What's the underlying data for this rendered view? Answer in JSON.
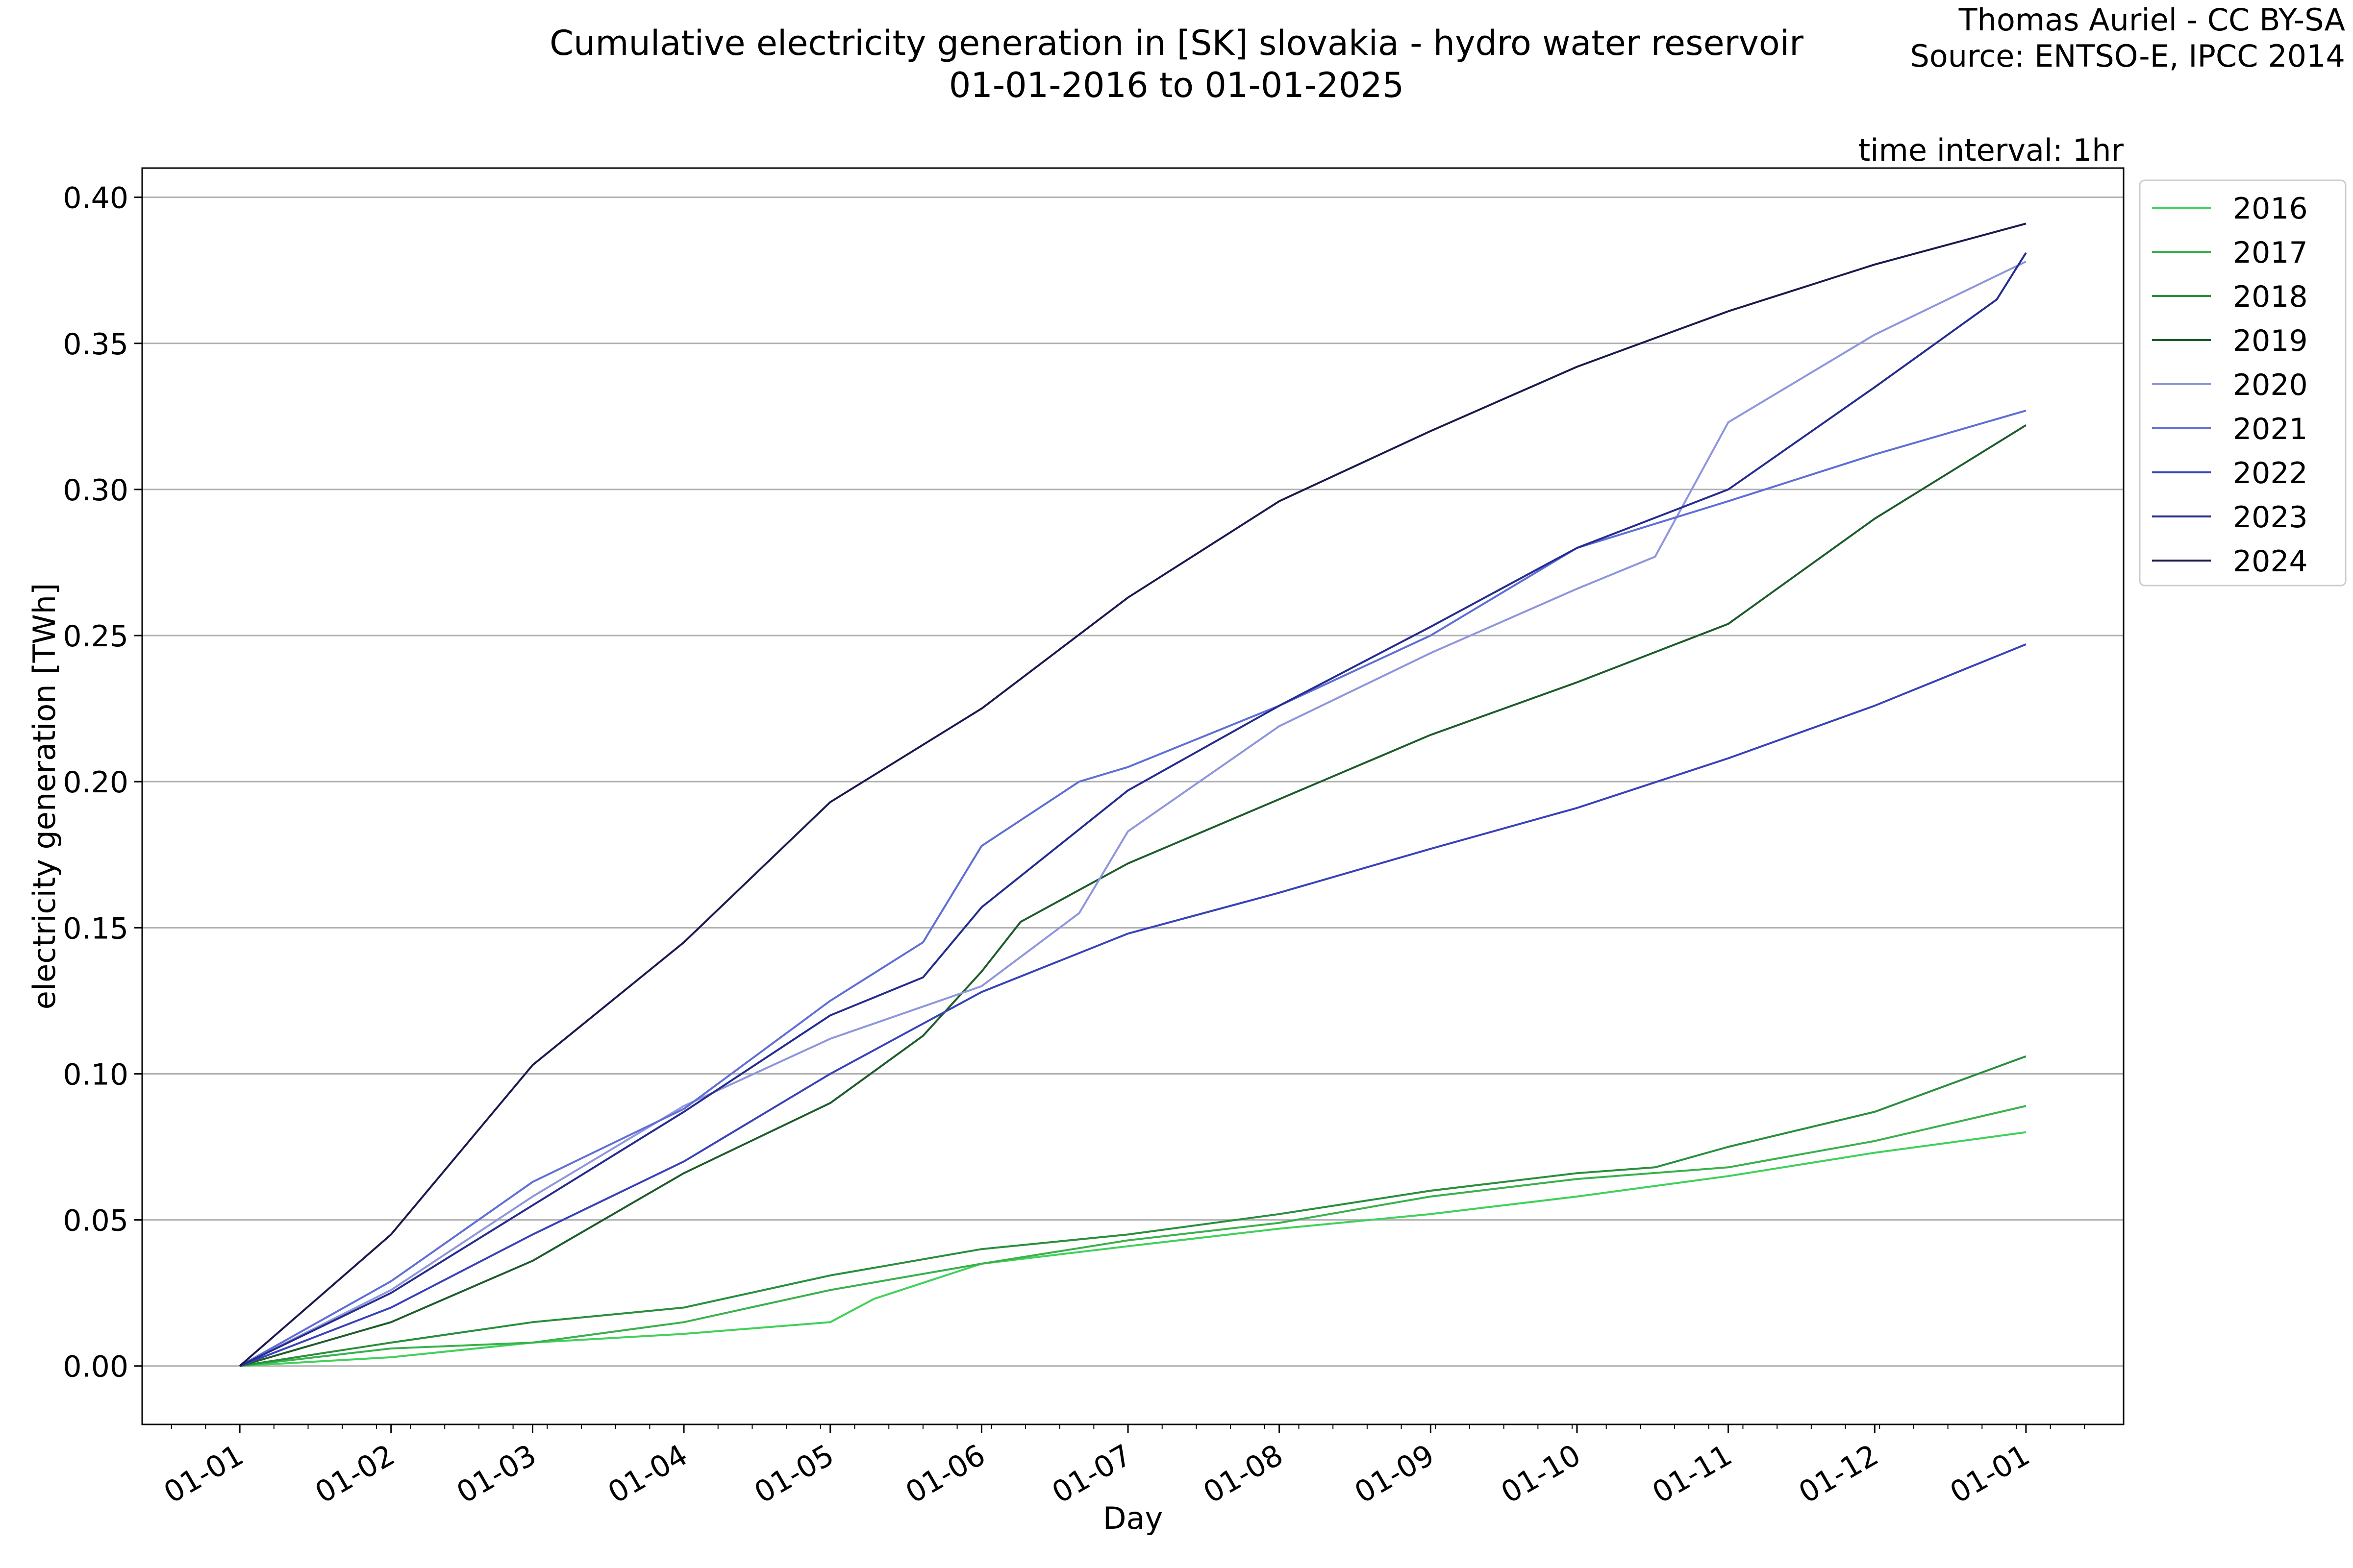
{
  "chart_data": {
    "type": "line",
    "title": "Cumulative electricity generation in [SK] slovakia - hydro water reservoir",
    "subtitle": "01-01-2016 to 01-01-2025",
    "credit": "Thomas Auriel - CC BY-SA",
    "source": "Source: ENTSO-E, IPCC 2014",
    "annotation": "time interval: 1hr",
    "xlabel": "Day",
    "ylabel": "electricity generation [TWh]",
    "x_unit": "day of year",
    "xlim": [
      -20,
      386
    ],
    "ylim": [
      -0.02,
      0.41
    ],
    "x_ticks": [
      {
        "day": 0,
        "label": "01-01"
      },
      {
        "day": 31,
        "label": "01-02"
      },
      {
        "day": 60,
        "label": "01-03"
      },
      {
        "day": 91,
        "label": "01-04"
      },
      {
        "day": 121,
        "label": "01-05"
      },
      {
        "day": 152,
        "label": "01-06"
      },
      {
        "day": 182,
        "label": "01-07"
      },
      {
        "day": 213,
        "label": "01-08"
      },
      {
        "day": 244,
        "label": "01-09"
      },
      {
        "day": 274,
        "label": "01-10"
      },
      {
        "day": 305,
        "label": "01-11"
      },
      {
        "day": 335,
        "label": "01-12"
      },
      {
        "day": 366,
        "label": "01-01"
      }
    ],
    "y_ticks": [
      {
        "value": 0.0,
        "label": "0.00"
      },
      {
        "value": 0.05,
        "label": "0.05"
      },
      {
        "value": 0.1,
        "label": "0.10"
      },
      {
        "value": 0.15,
        "label": "0.15"
      },
      {
        "value": 0.2,
        "label": "0.20"
      },
      {
        "value": 0.25,
        "label": "0.25"
      },
      {
        "value": 0.3,
        "label": "0.30"
      },
      {
        "value": 0.35,
        "label": "0.35"
      },
      {
        "value": 0.4,
        "label": "0.40"
      }
    ],
    "grid": "horizontal",
    "legend_position": "outside right, top",
    "series": [
      {
        "name": "2016",
        "color": "#41d15a",
        "points": [
          [
            0,
            0
          ],
          [
            31,
            0.003
          ],
          [
            60,
            0.008
          ],
          [
            91,
            0.011
          ],
          [
            121,
            0.015
          ],
          [
            130,
            0.023
          ],
          [
            152,
            0.035
          ],
          [
            182,
            0.041
          ],
          [
            213,
            0.047
          ],
          [
            244,
            0.052
          ],
          [
            274,
            0.058
          ],
          [
            305,
            0.065
          ],
          [
            335,
            0.073
          ],
          [
            366,
            0.08
          ]
        ]
      },
      {
        "name": "2017",
        "color": "#3ab14d",
        "points": [
          [
            0,
            0
          ],
          [
            31,
            0.006
          ],
          [
            60,
            0.008
          ],
          [
            91,
            0.015
          ],
          [
            121,
            0.026
          ],
          [
            152,
            0.035
          ],
          [
            182,
            0.043
          ],
          [
            213,
            0.049
          ],
          [
            244,
            0.058
          ],
          [
            274,
            0.064
          ],
          [
            305,
            0.068
          ],
          [
            335,
            0.077
          ],
          [
            366,
            0.089
          ]
        ]
      },
      {
        "name": "2018",
        "color": "#2a8f3d",
        "points": [
          [
            0,
            0
          ],
          [
            31,
            0.008
          ],
          [
            60,
            0.015
          ],
          [
            91,
            0.02
          ],
          [
            121,
            0.031
          ],
          [
            152,
            0.04
          ],
          [
            182,
            0.045
          ],
          [
            213,
            0.052
          ],
          [
            244,
            0.06
          ],
          [
            274,
            0.066
          ],
          [
            290,
            0.068
          ],
          [
            305,
            0.075
          ],
          [
            335,
            0.087
          ],
          [
            366,
            0.106
          ]
        ]
      },
      {
        "name": "2019",
        "color": "#1e5c2c",
        "points": [
          [
            0,
            0
          ],
          [
            31,
            0.015
          ],
          [
            60,
            0.036
          ],
          [
            91,
            0.066
          ],
          [
            121,
            0.09
          ],
          [
            140,
            0.113
          ],
          [
            152,
            0.135
          ],
          [
            160,
            0.152
          ],
          [
            182,
            0.172
          ],
          [
            213,
            0.194
          ],
          [
            244,
            0.216
          ],
          [
            274,
            0.234
          ],
          [
            305,
            0.254
          ],
          [
            335,
            0.29
          ],
          [
            366,
            0.322
          ]
        ]
      },
      {
        "name": "2020",
        "color": "#8e96dc",
        "points": [
          [
            0,
            0
          ],
          [
            31,
            0.026
          ],
          [
            60,
            0.058
          ],
          [
            91,
            0.089
          ],
          [
            121,
            0.112
          ],
          [
            152,
            0.13
          ],
          [
            172,
            0.155
          ],
          [
            182,
            0.183
          ],
          [
            213,
            0.219
          ],
          [
            244,
            0.244
          ],
          [
            274,
            0.266
          ],
          [
            290,
            0.277
          ],
          [
            305,
            0.323
          ],
          [
            335,
            0.353
          ],
          [
            366,
            0.378
          ]
        ]
      },
      {
        "name": "2021",
        "color": "#5f6fd6",
        "points": [
          [
            0,
            0
          ],
          [
            31,
            0.029
          ],
          [
            60,
            0.063
          ],
          [
            91,
            0.088
          ],
          [
            121,
            0.125
          ],
          [
            140,
            0.145
          ],
          [
            152,
            0.178
          ],
          [
            172,
            0.2
          ],
          [
            182,
            0.205
          ],
          [
            213,
            0.226
          ],
          [
            244,
            0.25
          ],
          [
            274,
            0.28
          ],
          [
            305,
            0.296
          ],
          [
            335,
            0.312
          ],
          [
            366,
            0.327
          ]
        ]
      },
      {
        "name": "2022",
        "color": "#3a42b8",
        "points": [
          [
            0,
            0
          ],
          [
            31,
            0.02
          ],
          [
            60,
            0.045
          ],
          [
            91,
            0.07
          ],
          [
            121,
            0.1
          ],
          [
            152,
            0.128
          ],
          [
            182,
            0.148
          ],
          [
            213,
            0.162
          ],
          [
            244,
            0.177
          ],
          [
            274,
            0.191
          ],
          [
            305,
            0.208
          ],
          [
            335,
            0.226
          ],
          [
            366,
            0.247
          ]
        ]
      },
      {
        "name": "2023",
        "color": "#262c8f",
        "points": [
          [
            0,
            0
          ],
          [
            31,
            0.025
          ],
          [
            60,
            0.055
          ],
          [
            91,
            0.087
          ],
          [
            121,
            0.12
          ],
          [
            140,
            0.133
          ],
          [
            152,
            0.157
          ],
          [
            182,
            0.197
          ],
          [
            213,
            0.226
          ],
          [
            244,
            0.253
          ],
          [
            274,
            0.28
          ],
          [
            305,
            0.3
          ],
          [
            335,
            0.335
          ],
          [
            360,
            0.365
          ],
          [
            366,
            0.381
          ]
        ]
      },
      {
        "name": "2024",
        "color": "#1a1a4e",
        "points": [
          [
            0,
            0
          ],
          [
            31,
            0.045
          ],
          [
            60,
            0.103
          ],
          [
            91,
            0.145
          ],
          [
            121,
            0.193
          ],
          [
            152,
            0.225
          ],
          [
            182,
            0.263
          ],
          [
            213,
            0.296
          ],
          [
            244,
            0.32
          ],
          [
            274,
            0.342
          ],
          [
            305,
            0.361
          ],
          [
            335,
            0.377
          ],
          [
            366,
            0.391
          ]
        ]
      }
    ]
  }
}
